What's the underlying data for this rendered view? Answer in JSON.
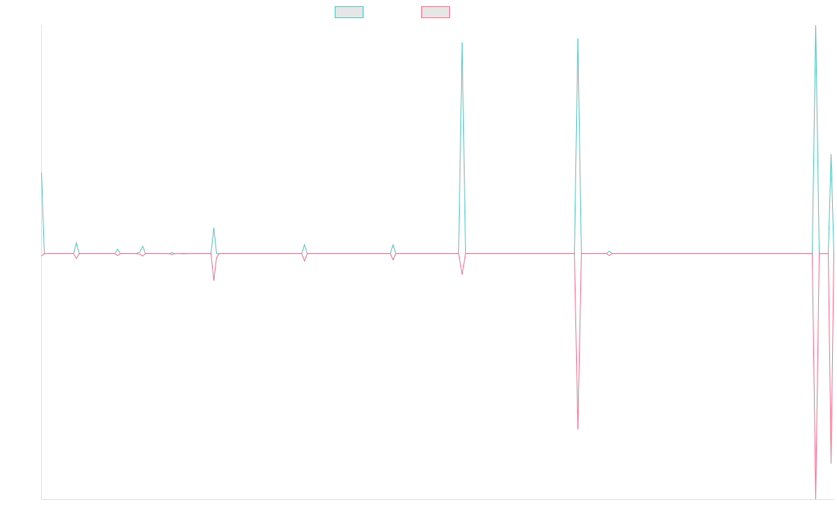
{
  "chart_data": {
    "type": "line",
    "title": "",
    "xlabel": "",
    "ylabel": "",
    "grid": false,
    "legend": "top-center",
    "ylim": [
      -1.0,
      0.93
    ],
    "x": [
      0,
      1,
      2,
      3,
      4,
      5,
      6,
      7,
      8,
      9,
      10,
      11,
      12,
      13,
      14,
      15,
      16,
      17,
      18,
      19,
      20,
      21,
      22,
      23,
      24,
      25,
      26,
      27,
      28,
      29,
      30,
      31,
      32,
      33,
      34,
      35,
      36,
      37,
      38,
      39,
      40,
      41,
      42,
      43,
      44,
      45,
      46,
      47,
      48,
      49,
      50,
      51,
      52,
      53,
      54,
      55,
      56,
      57,
      58,
      59,
      60,
      61,
      62,
      63,
      64,
      65,
      66,
      67,
      68,
      69,
      70,
      71,
      72,
      73,
      74,
      75,
      76,
      77,
      78,
      79,
      80,
      81,
      82,
      83,
      84,
      85,
      86,
      87,
      88,
      89,
      90,
      91,
      92,
      93,
      94,
      95,
      96,
      97,
      98,
      99,
      100,
      101,
      102,
      103,
      104,
      105,
      106,
      107,
      108,
      109,
      110,
      111,
      112,
      113,
      114,
      115,
      116,
      117,
      118,
      119,
      120,
      121,
      122,
      123,
      124,
      125,
      126,
      127,
      128,
      129,
      130,
      131,
      132,
      133,
      134,
      135,
      136,
      137,
      138,
      139,
      140,
      141,
      142,
      143,
      144,
      145,
      146,
      147,
      148,
      149,
      150,
      151,
      152,
      153,
      154,
      155,
      156,
      157,
      158,
      159,
      160,
      161,
      162,
      163,
      164,
      165,
      166,
      167,
      168,
      169,
      170,
      171,
      172,
      173,
      174,
      175,
      176,
      177,
      178,
      179,
      180,
      181,
      182,
      183,
      184,
      185,
      186,
      187,
      188,
      189,
      190,
      191,
      192,
      193,
      194,
      195,
      196,
      197,
      198,
      199,
      200,
      201,
      202,
      203,
      204,
      205,
      206,
      207,
      208,
      209,
      210,
      211,
      212,
      213,
      214,
      215,
      216,
      217,
      218,
      219,
      220,
      221,
      222,
      223,
      224,
      225,
      226,
      227,
      228,
      229,
      230,
      231,
      232,
      233,
      234,
      235,
      236,
      237,
      238,
      239,
      240,
      241,
      242,
      243,
      244,
      245,
      246,
      247,
      248,
      249,
      250,
      251,
      252,
      253,
      254,
      255,
      256,
      257,
      258,
      259,
      260,
      261,
      262,
      263,
      264,
      265,
      266,
      267,
      268,
      269,
      270,
      271,
      272,
      273,
      274,
      275,
      276,
      277,
      278,
      279,
      280,
      281,
      282,
      283,
      284,
      285,
      286,
      287,
      288,
      289,
      290,
      291,
      292,
      293,
      294,
      295,
      296,
      297,
      298,
      299,
      300,
      301,
      302,
      303,
      304,
      305,
      306,
      307,
      308,
      309,
      310,
      311,
      312,
      313,
      314,
      315,
      316,
      317,
      318,
      319,
      320,
      321,
      322,
      323,
      324,
      325,
      326,
      327,
      328,
      329,
      330,
      331,
      332,
      333,
      334,
      335,
      336,
      337,
      338,
      339,
      340,
      341,
      342,
      343,
      344,
      345,
      346,
      347,
      348,
      349,
      350,
      351,
      352,
      353,
      354,
      355,
      356,
      357,
      358,
      359,
      360,
      361,
      362,
      363,
      364,
      365,
      366,
      367,
      368,
      369,
      370,
      371,
      372,
      373,
      374,
      375,
      376,
      377,
      378,
      379,
      380,
      381,
      382,
      383,
      384,
      385,
      386,
      387,
      388,
      389,
      390,
      391,
      392,
      393,
      394,
      395,
      396,
      397,
      398,
      399,
      400,
      401,
      402,
      403,
      404,
      405,
      406,
      407,
      408,
      409,
      410,
      411,
      412,
      413,
      414,
      415,
      416,
      417,
      418,
      419,
      420,
      421,
      422,
      423,
      424,
      425,
      426,
      427,
      428,
      429,
      430,
      431,
      432,
      433,
      434,
      435,
      436,
      437,
      438,
      439,
      440,
      441,
      442,
      443,
      444,
      445,
      446,
      447,
      448,
      449,
      450,
      451,
      452,
      453,
      454,
      455,
      456,
      457,
      458,
      459,
      460,
      461,
      462,
      463,
      464,
      465,
      466,
      467,
      468,
      469,
      470,
      471,
      472,
      473,
      474,
      475,
      476,
      477,
      478,
      479,
      480,
      481,
      482,
      483,
      484,
      485,
      486,
      487,
      488,
      489,
      490,
      491,
      492,
      493,
      494,
      495,
      496,
      497,
      498,
      499,
      500,
      501,
      502,
      503,
      504,
      505,
      506,
      507,
      508,
      509,
      510,
      511,
      512,
      513,
      514,
      515,
      516,
      517,
      518,
      519,
      520,
      521,
      522,
      523,
      524,
      525,
      526,
      527,
      528,
      529,
      530,
      531,
      532,
      533,
      534,
      535,
      536,
      537,
      538,
      539,
      540,
      541,
      542,
      543,
      544,
      545,
      546,
      547,
      548,
      549,
      550,
      551,
      552,
      553,
      554,
      555,
      556,
      557,
      558,
      559,
      560,
      561,
      562,
      563,
      564,
      565,
      566,
      567,
      568,
      569,
      570,
      571,
      572,
      573,
      574,
      575,
      576,
      577,
      578,
      579,
      580,
      581,
      582,
      583,
      584,
      585,
      586,
      587,
      588,
      589,
      590,
      591,
      592,
      593,
      594,
      595,
      596,
      597,
      598,
      599,
      600,
      601,
      602,
      603,
      604,
      605,
      606,
      607,
      608,
      609,
      610,
      611,
      612,
      613,
      614,
      615,
      616,
      617,
      618,
      619,
      620,
      621,
      622,
      623,
      624,
      625,
      626,
      627,
      628,
      629,
      630,
      631,
      632,
      633,
      634,
      635,
      636,
      637,
      638,
      639,
      640,
      641,
      642,
      643,
      644,
      645,
      646,
      647,
      648,
      649,
      650,
      651,
      652,
      653,
      654,
      655,
      656,
      657,
      658,
      659,
      660,
      661,
      662,
      663,
      664,
      665,
      666,
      667,
      668,
      669,
      670,
      671,
      672,
      673,
      674,
      675,
      676,
      677,
      678,
      679,
      680,
      681,
      682,
      683,
      684,
      685,
      686,
      687,
      688,
      689,
      690,
      691,
      692,
      693,
      694,
      695,
      696,
      697,
      698,
      699,
      700,
      701,
      702,
      703,
      704,
      705,
      706,
      707,
      708,
      709,
      710,
      711,
      712,
      713,
      714,
      715,
      716,
      717,
      718,
      719,
      720,
      721,
      722,
      723,
      724,
      725,
      726,
      727,
      728,
      729,
      730,
      731,
      732,
      733,
      734,
      735,
      736,
      737,
      738,
      739,
      740,
      741,
      742,
      743,
      744,
      745,
      746,
      747,
      748,
      749,
      750,
      751,
      752,
      753,
      754,
      755,
      756,
      757,
      758,
      759,
      760,
      761,
      762,
      763,
      764,
      765,
      766,
      767,
      768,
      769,
      770,
      771,
      772,
      773,
      774,
      775,
      776,
      777,
      778,
      779,
      780,
      781,
      782,
      783,
      784,
      785,
      786,
      787,
      788,
      789,
      790,
      791,
      792,
      793,
      794,
      795,
      796,
      797,
      798,
      799,
      800,
      801,
      802,
      803,
      804,
      805,
      806,
      807,
      808,
      809,
      810,
      811,
      812,
      813,
      814,
      815,
      816,
      817,
      818,
      819,
      820,
      821,
      822,
      823,
      824,
      825,
      826,
      827,
      828,
      829,
      830,
      831,
      832,
      833,
      834,
      835,
      836,
      837,
      838,
      839,
      840,
      841,
      842,
      843,
      844,
      845,
      846,
      847,
      848,
      849,
      850,
      851,
      852,
      853,
      854,
      855,
      856,
      857,
      858,
      859,
      860,
      861,
      862,
      863,
      864,
      865,
      866,
      867,
      868,
      869,
      870,
      871,
      872,
      873,
      874,
      875,
      876,
      877,
      878,
      879,
      880,
      881,
      882,
      883,
      884,
      885,
      886,
      887,
      888,
      889,
      890,
      891,
      892,
      893,
      894,
      895,
      896,
      897,
      898,
      899,
      900,
      901,
      902,
      903,
      904,
      905,
      906,
      907,
      908,
      909,
      910,
      911,
      912,
      913,
      914,
      915,
      916,
      917,
      918,
      919,
      920,
      921,
      922,
      923,
      924,
      925,
      926,
      927,
      928,
      929,
      930,
      931,
      932,
      933,
      934,
      935,
      936,
      937,
      938,
      939,
      940,
      941,
      942,
      943,
      944,
      945,
      946,
      947,
      948,
      949,
      950,
      951,
      952,
      953,
      954,
      955,
      956,
      957,
      958,
      959,
      960,
      961,
      962,
      963,
      964,
      965,
      966,
      967,
      968,
      969,
      970,
      971,
      972,
      973,
      974,
      975,
      976,
      977,
      978,
      979,
      980,
      981,
      982,
      983,
      984,
      985,
      986,
      987,
      988,
      989,
      990,
      991,
      992,
      993,
      994,
      995,
      996,
      997,
      998,
      999,
      1000,
      1001,
      1002,
      1003,
      1004,
      1005,
      1006,
      1007,
      1008,
      1009,
      1010,
      1011,
      1012,
      1013,
      1014,
      1015,
      1016,
      1017,
      1018,
      1019,
      1020,
      1021,
      1022,
      1023,
      1024,
      1025,
      1026,
      1027,
      1028,
      1029,
      1030,
      1031,
      1032,
      1033,
      1034,
      1035,
      1036,
      1037,
      1038,
      1039,
      1040,
      1041,
      1042,
      1043,
      1044,
      1045,
      1046,
      1047,
      1048,
      1049,
      1050,
      1051,
      1052,
      1053,
      1054,
      1055,
      1056,
      1057,
      1058,
      1059,
      1060,
      1061,
      1062,
      1063,
      1064,
      1065,
      1066,
      1067,
      1068,
      1069,
      1070,
      1071,
      1072,
      1073,
      1074,
      1075,
      1076,
      1077,
      1078,
      1079,
      1080,
      1081,
      1082,
      1083,
      1084,
      1085,
      1086,
      1087,
      1088,
      1089,
      1090,
      1091,
      1092,
      1093,
      1094,
      1095,
      1096,
      1097,
      1098,
      1099,
      1100,
      1101,
      1102,
      1103,
      1104,
      1105,
      1106,
      1107,
      1108,
      1109,
      1110,
      1111,
      1112,
      1113,
      1114,
      1115,
      1116,
      1117,
      1118,
      1119,
      1120,
      1121,
      1122,
      1123,
      1124,
      1125,
      1126,
      1127,
      1128,
      1129,
      1130,
      1131,
      1132,
      1133,
      1134,
      1135,
      1136
    ],
    "series_points": [
      {
        "name": "",
        "color": "#4bc0c0",
        "points": [
          [
            0,
            0.33
          ],
          [
            4,
            0.0
          ],
          [
            46,
            0.0
          ],
          [
            50,
            0.044
          ],
          [
            54,
            0.0
          ],
          [
            105,
            0.0
          ],
          [
            109,
            0.018
          ],
          [
            113,
            0.0
          ],
          [
            135,
            0.0
          ],
          [
            141,
            0.006
          ],
          [
            145,
            0.03
          ],
          [
            149,
            0.0
          ],
          [
            183,
            0.0
          ],
          [
            187,
            0.004
          ],
          [
            191,
            0.0
          ],
          [
            200,
            0.0
          ],
          [
            204,
            0.001
          ],
          [
            208,
            0.0
          ],
          [
            243,
            0.0
          ],
          [
            247,
            0.105
          ],
          [
            251,
            0.0
          ],
          [
            373,
            0.0
          ],
          [
            377,
            0.036
          ],
          [
            381,
            0.0
          ],
          [
            500,
            0.0
          ],
          [
            504,
            0.036
          ],
          [
            508,
            0.0
          ],
          [
            598,
            0.0
          ],
          [
            603,
            0.86
          ],
          [
            608,
            0.0
          ],
          [
            764,
            0.0
          ],
          [
            769,
            0.875
          ],
          [
            774,
            0.0
          ],
          [
            810,
            0.0
          ],
          [
            814,
            0.01
          ],
          [
            818,
            0.0
          ],
          [
            1105,
            0.0
          ],
          [
            1110,
            0.93
          ],
          [
            1115,
            0.0
          ],
          [
            1128,
            0.0
          ],
          [
            1132,
            0.405
          ],
          [
            1136,
            0.0
          ]
        ]
      },
      {
        "name": "",
        "color": "#ff6384",
        "points": [
          [
            0,
            -0.01
          ],
          [
            4,
            0.0
          ],
          [
            46,
            0.0
          ],
          [
            50,
            -0.02
          ],
          [
            54,
            0.0
          ],
          [
            105,
            0.0
          ],
          [
            109,
            -0.008
          ],
          [
            113,
            0.0
          ],
          [
            135,
            0.0
          ],
          [
            141,
            -0.002
          ],
          [
            145,
            -0.01
          ],
          [
            149,
            0.0
          ],
          [
            183,
            0.0
          ],
          [
            187,
            -0.004
          ],
          [
            191,
            0.0
          ],
          [
            200,
            0.0
          ],
          [
            204,
            -0.001
          ],
          [
            208,
            0.0
          ],
          [
            243,
            0.0
          ],
          [
            247,
            -0.11
          ],
          [
            251,
            -0.015
          ],
          [
            255,
            0.0
          ],
          [
            373,
            0.0
          ],
          [
            377,
            -0.03
          ],
          [
            381,
            0.0
          ],
          [
            500,
            0.0
          ],
          [
            504,
            -0.026
          ],
          [
            508,
            0.0
          ],
          [
            598,
            0.0
          ],
          [
            603,
            -0.085
          ],
          [
            608,
            0.0
          ],
          [
            764,
            0.0
          ],
          [
            769,
            -0.715
          ],
          [
            774,
            0.0
          ],
          [
            810,
            0.0
          ],
          [
            814,
            -0.008
          ],
          [
            818,
            0.0
          ],
          [
            1105,
            0.0
          ],
          [
            1110,
            -1.0
          ],
          [
            1115,
            0.0
          ],
          [
            1128,
            0.0
          ],
          [
            1132,
            -0.855
          ],
          [
            1136,
            0.0
          ]
        ]
      }
    ]
  }
}
